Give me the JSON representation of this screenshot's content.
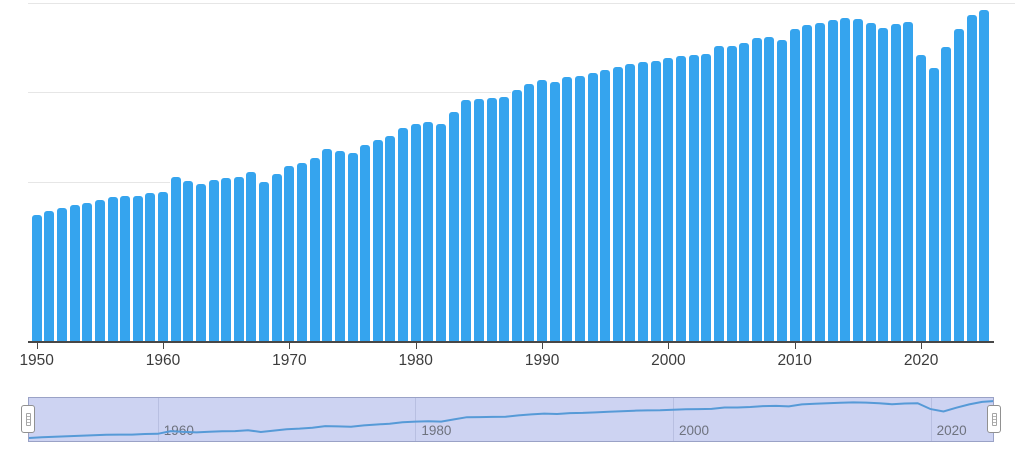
{
  "chart_data": {
    "type": "bar",
    "title": "",
    "xlabel": "",
    "ylabel": "",
    "legend": "none",
    "grid": "faint horizontal gridlines; no y-axis tick labels visible",
    "values_unit": "relative bar height in screen pixels (chart shows no numeric y-axis)",
    "x_start_year": 1950,
    "x_end_year": 2025,
    "x_tick_labels": [
      "1950",
      "1960",
      "1970",
      "1980",
      "1990",
      "2000",
      "2010",
      "2020"
    ],
    "values": [
      126,
      130,
      133,
      136,
      138,
      141,
      144,
      145,
      145,
      148,
      149,
      164,
      160,
      157,
      161,
      163,
      164,
      169,
      159,
      167,
      175,
      178,
      183,
      192,
      190,
      188,
      196,
      201,
      205,
      213,
      217,
      219,
      217,
      229,
      241,
      242,
      243,
      244,
      251,
      257,
      261,
      259,
      264,
      265,
      268,
      271,
      274,
      277,
      279,
      280,
      283,
      285,
      286,
      287,
      295,
      295,
      298,
      303,
      304,
      301,
      312,
      316,
      318,
      321,
      323,
      322,
      318,
      313,
      317,
      319,
      286,
      273,
      294,
      312,
      326,
      331
    ]
  },
  "range_selector": {
    "tick_labels": [
      "1960",
      "1980",
      "2000",
      "2020"
    ],
    "selection_state": "full range selected",
    "preview": "line chart of same series"
  },
  "colors": {
    "bar": "#35a4ee",
    "axis": "#474747",
    "gridline": "#e6e6e6",
    "tick_label": "#3c3c3c",
    "brush_bg": "#cdd3f2",
    "brush_border": "#9aa2c6",
    "brush_grid": "#b8bfe1",
    "brush_label": "#6e727e",
    "brush_line": "#569ad7",
    "handle_border": "#919191"
  }
}
